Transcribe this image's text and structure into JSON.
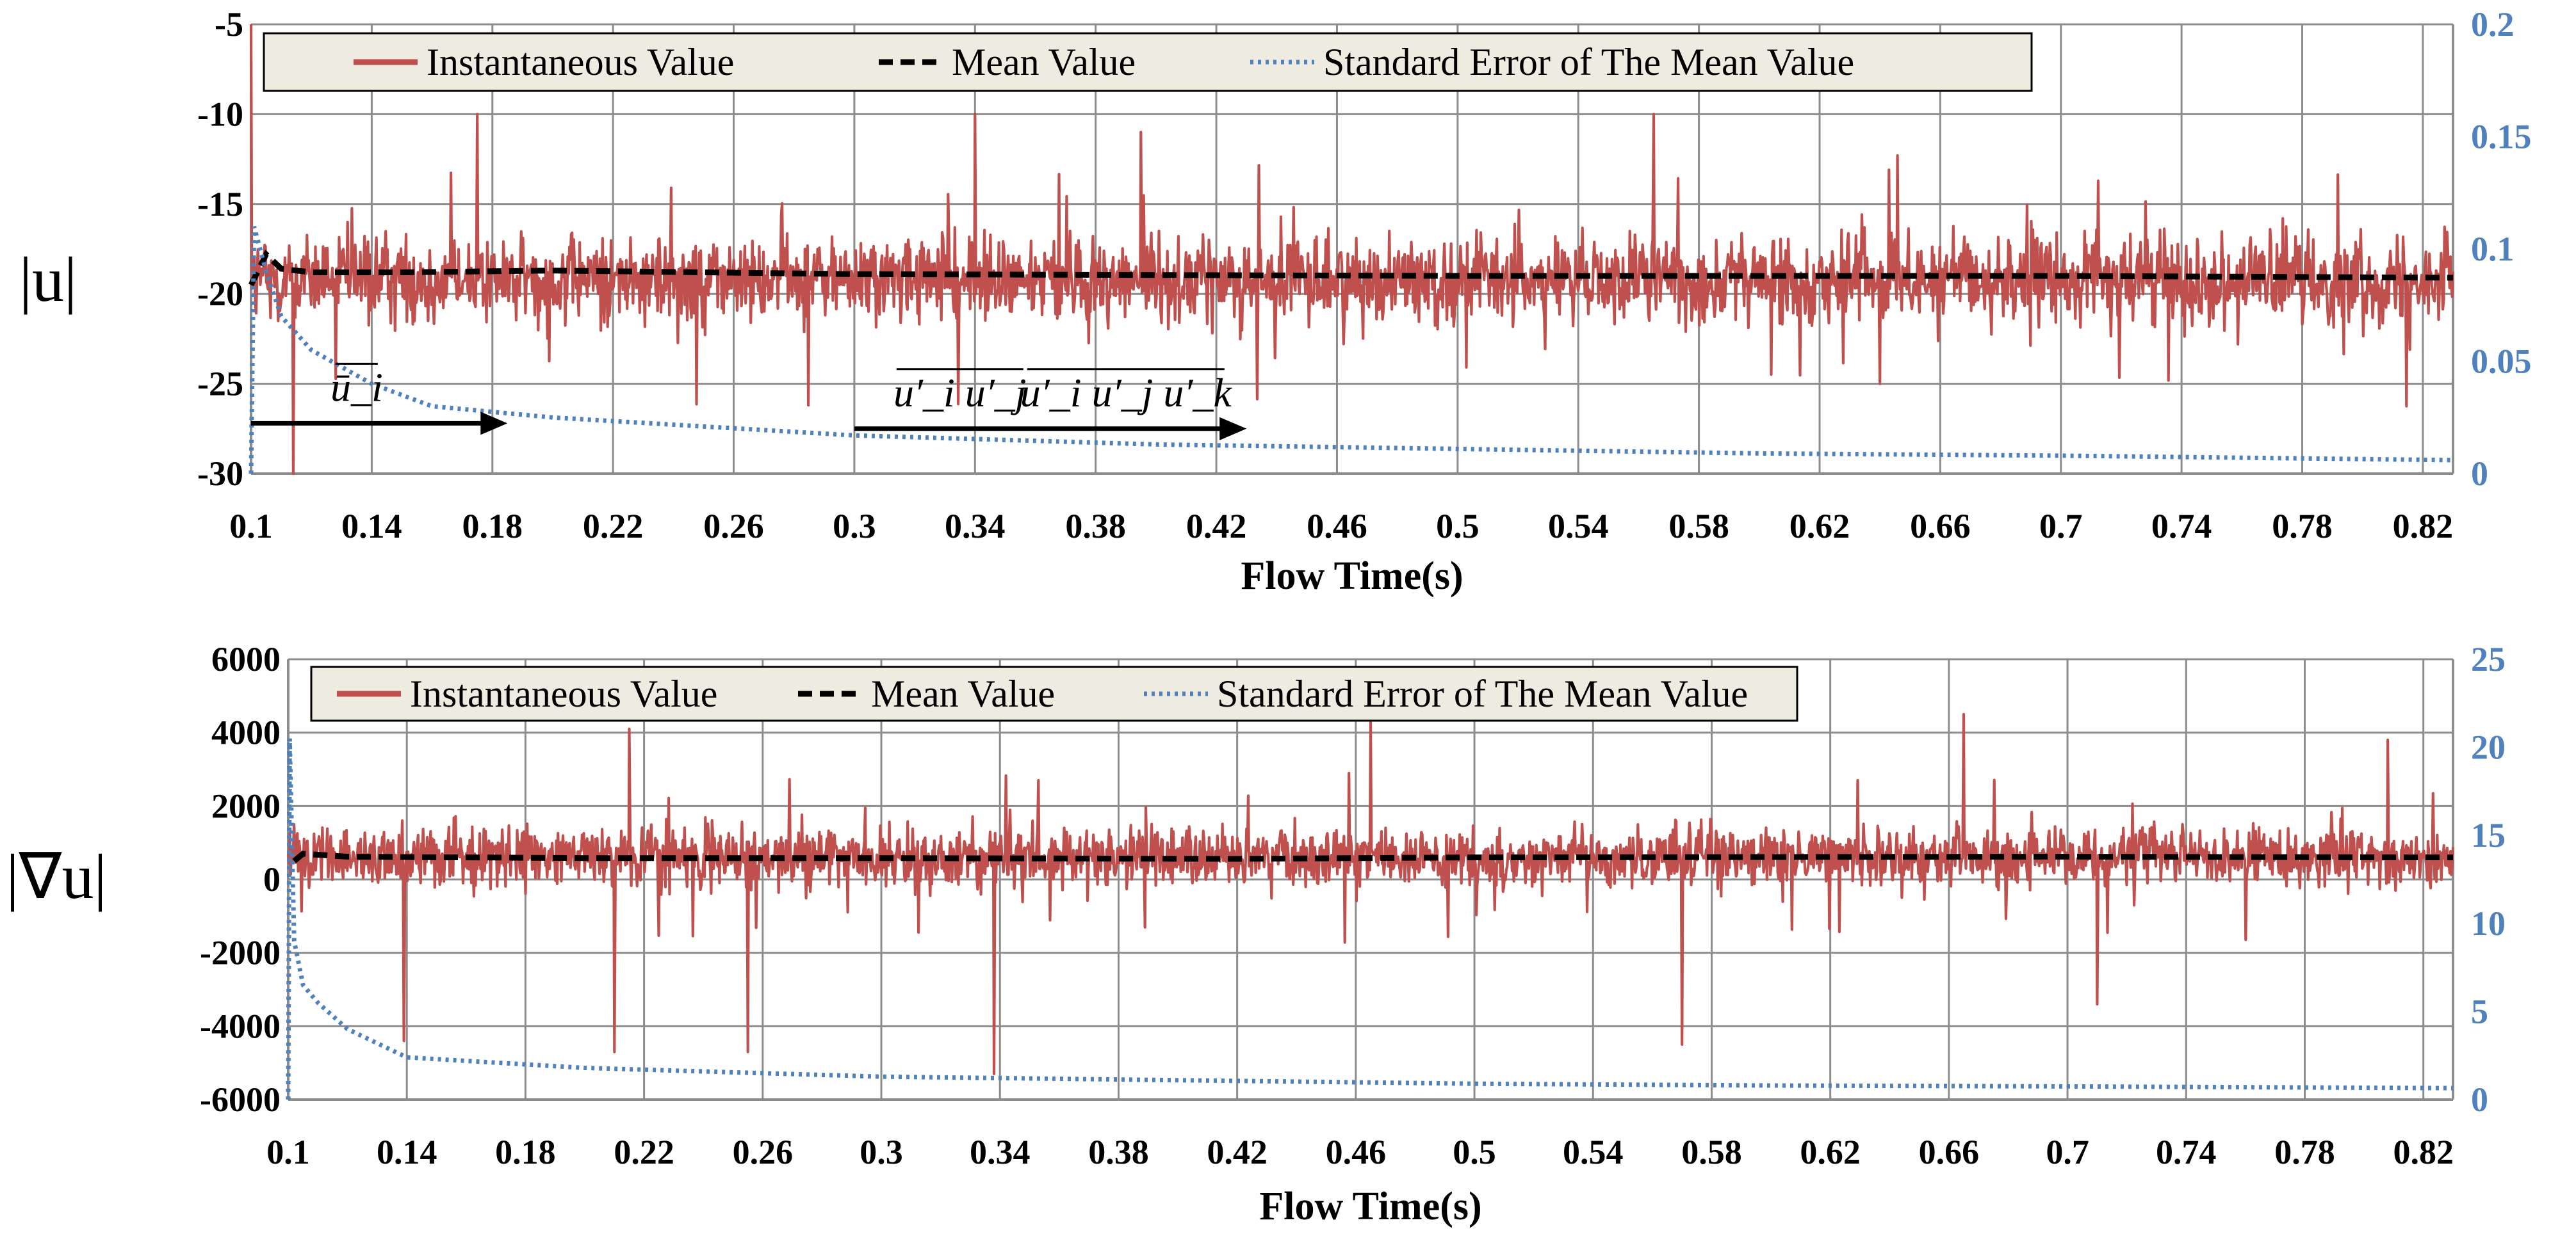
{
  "chart_data": [
    {
      "type": "line",
      "ylabel": "|u|",
      "xlabel": "Flow Time(s)",
      "xlim": [
        0.1,
        0.83
      ],
      "ylim": [
        -30,
        -5
      ],
      "y2lim": [
        0,
        0.2
      ],
      "xticks": [
        "0.1",
        "0.14",
        "0.18",
        "0.22",
        "0.26",
        "0.3",
        "0.34",
        "0.38",
        "0.42",
        "0.46",
        "0.5",
        "0.54",
        "0.58",
        "0.62",
        "0.66",
        "0.7",
        "0.74",
        "0.78",
        "0.82"
      ],
      "yticks": [
        "-5",
        "-10",
        "-15",
        "-20",
        "-25",
        "-30"
      ],
      "y2ticks": [
        "0.2",
        "0.15",
        "0.1",
        "0.05",
        "0"
      ],
      "legend": [
        "Instantaneous Value",
        "Mean Value",
        "Standard Error of The Mean Value"
      ],
      "legend_position": "top",
      "series": [
        {
          "name": "Instantaneous Value",
          "axis": "left",
          "color": "#c0504d",
          "style": "solid",
          "center": -19.2,
          "amplitude": 4.5,
          "spikes": [
            [
              0.1,
              -5
            ],
            [
              0.114,
              -30
            ],
            [
              0.175,
              -10
            ],
            [
              0.34,
              -10
            ],
            [
              0.395,
              -11
            ],
            [
              0.565,
              -10
            ],
            [
              0.64,
              -25
            ]
          ]
        },
        {
          "name": "Mean Value",
          "axis": "left",
          "color": "#000000",
          "style": "dashed",
          "x": [
            0.1,
            0.105,
            0.11,
            0.12,
            0.15,
            0.2,
            0.3,
            0.5,
            0.7,
            0.83
          ],
          "y": [
            -19.5,
            -17.8,
            -18.6,
            -18.8,
            -18.8,
            -18.7,
            -18.9,
            -19.0,
            -19.0,
            -19.1
          ]
        },
        {
          "name": "Standard Error of The Mean Value",
          "axis": "right",
          "color": "#4f81bd",
          "style": "dotted",
          "x": [
            0.1,
            0.101,
            0.105,
            0.11,
            0.12,
            0.14,
            0.16,
            0.2,
            0.3,
            0.4,
            0.5,
            0.6,
            0.7,
            0.83
          ],
          "y": [
            0.0,
            0.11,
            0.09,
            0.07,
            0.055,
            0.04,
            0.03,
            0.025,
            0.017,
            0.013,
            0.011,
            0.009,
            0.008,
            0.006
          ]
        }
      ],
      "annotations": [
        {
          "text": "ū_i",
          "x": 0.135,
          "y": -27.2,
          "arrow_from": 0.1,
          "arrow_to": 0.185
        },
        {
          "text": "u′_i u′_j",
          "x": 0.335,
          "y": -27.5
        },
        {
          "text": "u′_i u′_j u′_k",
          "x": 0.39,
          "y": -27.5,
          "arrow_from": 0.3,
          "arrow_to": 0.43
        }
      ]
    },
    {
      "type": "line",
      "ylabel": "|∇u|",
      "xlabel": "Flow Time(s)",
      "xlim": [
        0.1,
        0.83
      ],
      "ylim": [
        -6000,
        6000
      ],
      "y2lim": [
        0,
        25
      ],
      "xticks": [
        "0.1",
        "0.14",
        "0.18",
        "0.22",
        "0.26",
        "0.3",
        "0.34",
        "0.38",
        "0.42",
        "0.46",
        "0.5",
        "0.54",
        "0.58",
        "0.62",
        "0.66",
        "0.7",
        "0.74",
        "0.78",
        "0.82"
      ],
      "yticks": [
        "6000",
        "4000",
        "2000",
        "0",
        "-2000",
        "-4000",
        "-6000"
      ],
      "y2ticks": [
        "25",
        "20",
        "15",
        "10",
        "5",
        "0"
      ],
      "legend": [
        "Instantaneous Value",
        "Mean Value",
        "Standard Error of The Mean Value"
      ],
      "legend_position": "top",
      "series": [
        {
          "name": "Instantaneous Value",
          "axis": "left",
          "color": "#c0504d",
          "style": "solid",
          "center": 600,
          "amplitude": 1500,
          "spikes": [
            [
              0.139,
              -4400
            ],
            [
              0.21,
              -4700
            ],
            [
              0.255,
              -4700
            ],
            [
              0.338,
              -5300
            ],
            [
              0.215,
              4100
            ],
            [
              0.465,
              4300
            ],
            [
              0.665,
              4500
            ],
            [
              0.57,
              -4500
            ],
            [
              0.71,
              -3400
            ],
            [
              0.808,
              3800
            ]
          ]
        },
        {
          "name": "Mean Value",
          "axis": "left",
          "color": "#000000",
          "style": "dashed",
          "x": [
            0.102,
            0.105,
            0.12,
            0.2,
            0.3,
            0.42,
            0.5,
            0.6,
            0.7,
            0.83
          ],
          "y": [
            500,
            700,
            620,
            580,
            580,
            560,
            600,
            610,
            620,
            600
          ]
        },
        {
          "name": "Standard Error of The Mean Value",
          "axis": "right",
          "color": "#4f81bd",
          "style": "dotted",
          "x": [
            0.1,
            0.1005,
            0.102,
            0.105,
            0.11,
            0.12,
            0.14,
            0.2,
            0.3,
            0.4,
            0.5,
            0.6,
            0.7,
            0.83
          ],
          "y": [
            0.0,
            20.5,
            9.0,
            6.5,
            5.5,
            4.0,
            2.4,
            1.8,
            1.3,
            1.1,
            0.9,
            0.8,
            0.75,
            0.65
          ]
        }
      ]
    }
  ]
}
